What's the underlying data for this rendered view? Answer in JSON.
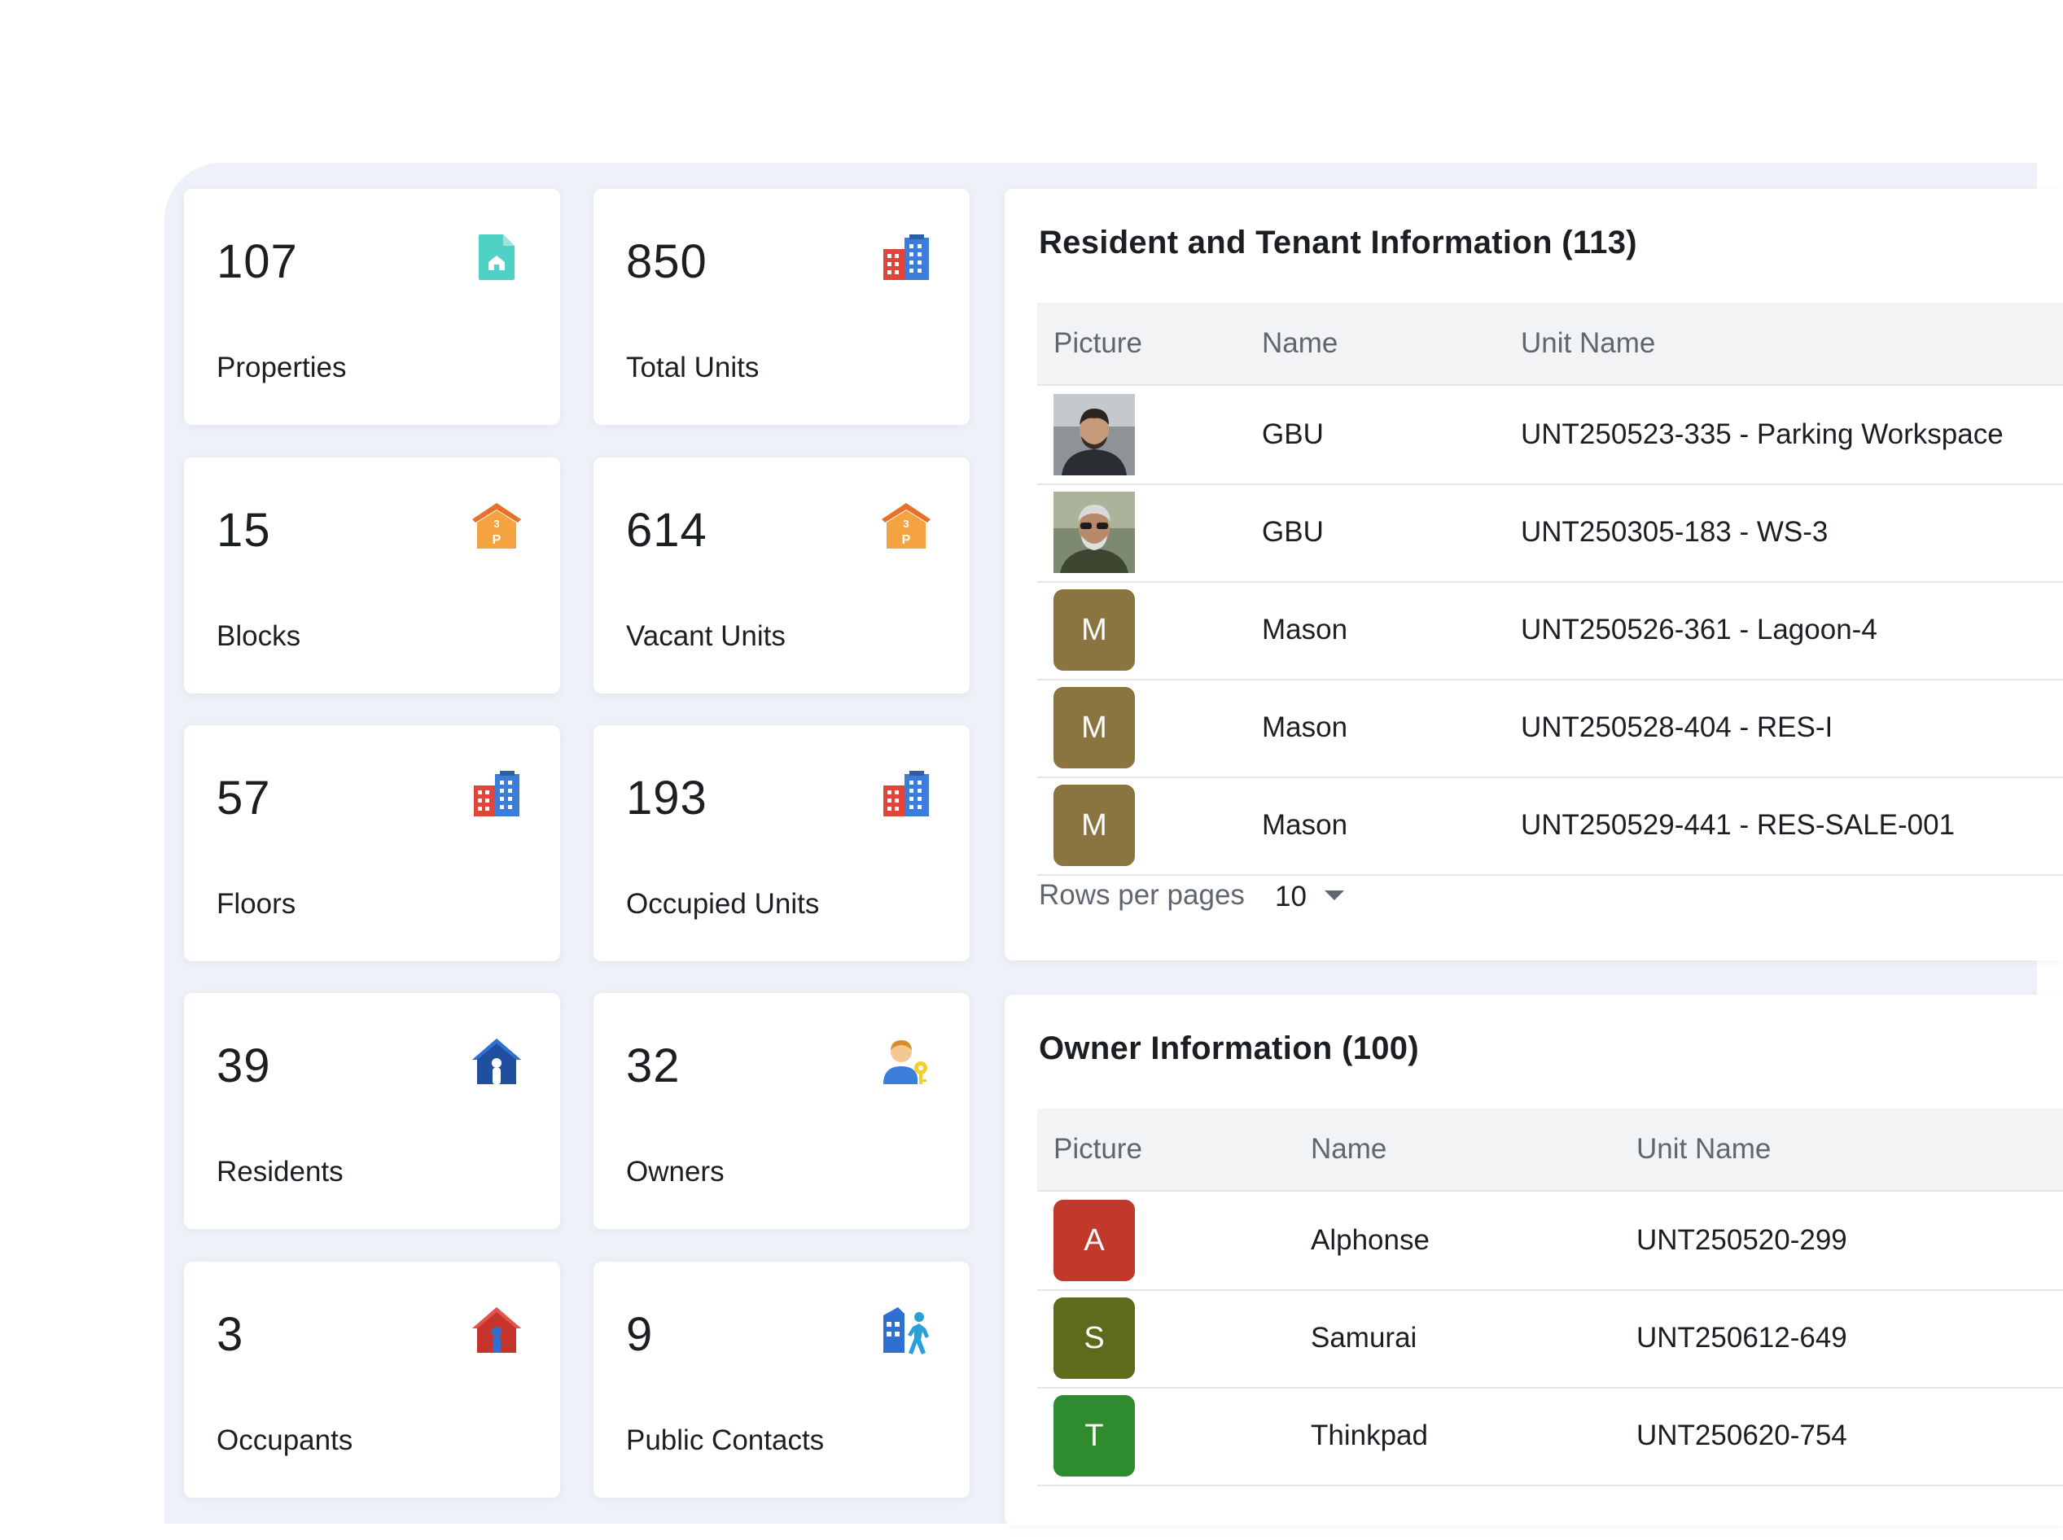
{
  "stats": [
    {
      "value": "107",
      "label": "Properties",
      "icon": "property-document-icon"
    },
    {
      "value": "850",
      "label": "Total Units",
      "icon": "buildings-icon"
    },
    {
      "value": "15",
      "label": "Blocks",
      "icon": "parking-block-icon"
    },
    {
      "value": "614",
      "label": "Vacant Units",
      "icon": "parking-block-icon"
    },
    {
      "value": "57",
      "label": "Floors",
      "icon": "buildings-icon"
    },
    {
      "value": "193",
      "label": "Occupied Units",
      "icon": "buildings-icon"
    },
    {
      "value": "39",
      "label": "Residents",
      "icon": "resident-house-icon"
    },
    {
      "value": "32",
      "label": "Owners",
      "icon": "owner-key-icon"
    },
    {
      "value": "3",
      "label": "Occupants",
      "icon": "occupant-house-icon"
    },
    {
      "value": "9",
      "label": "Public Contacts",
      "icon": "public-contact-icon"
    }
  ],
  "resident_table": {
    "title": "Resident and Tenant Information (113)",
    "columns": [
      "Picture",
      "Name",
      "Unit Name"
    ],
    "rows": [
      {
        "avatar": "photo",
        "initial": "",
        "name": "GBU",
        "unit": "UNT250523-335 - Parking Workspace"
      },
      {
        "avatar": "photo",
        "initial": "",
        "name": "GBU",
        "unit": "UNT250305-183 - WS-3"
      },
      {
        "avatar": "letter",
        "initial": "M",
        "name": "Mason",
        "unit": "UNT250526-361 - Lagoon-4"
      },
      {
        "avatar": "letter",
        "initial": "M",
        "name": "Mason",
        "unit": "UNT250528-404 - RES-I"
      },
      {
        "avatar": "letter",
        "initial": "M",
        "name": "Mason",
        "unit": "UNT250529-441 - RES-SALE-001"
      }
    ],
    "rows_per_page_label": "Rows per pages",
    "rows_per_page_value": "10"
  },
  "owner_table": {
    "title": "Owner Information (100)",
    "columns": [
      "Picture",
      "Name",
      "Unit Name"
    ],
    "rows": [
      {
        "initial": "A",
        "name": "Alphonse",
        "unit": "UNT250520-299",
        "color": "#c0392b"
      },
      {
        "initial": "S",
        "name": "Samurai",
        "unit": "UNT250612-649",
        "color": "#5f6b1c"
      },
      {
        "initial": "T",
        "name": "Thinkpad",
        "unit": "UNT250620-754",
        "color": "#2e8b2e"
      }
    ]
  },
  "colors": {
    "mason_avatar": "#8a7440",
    "panel_bg": "#eef1f7",
    "header_bg": "#f2f3f5"
  }
}
